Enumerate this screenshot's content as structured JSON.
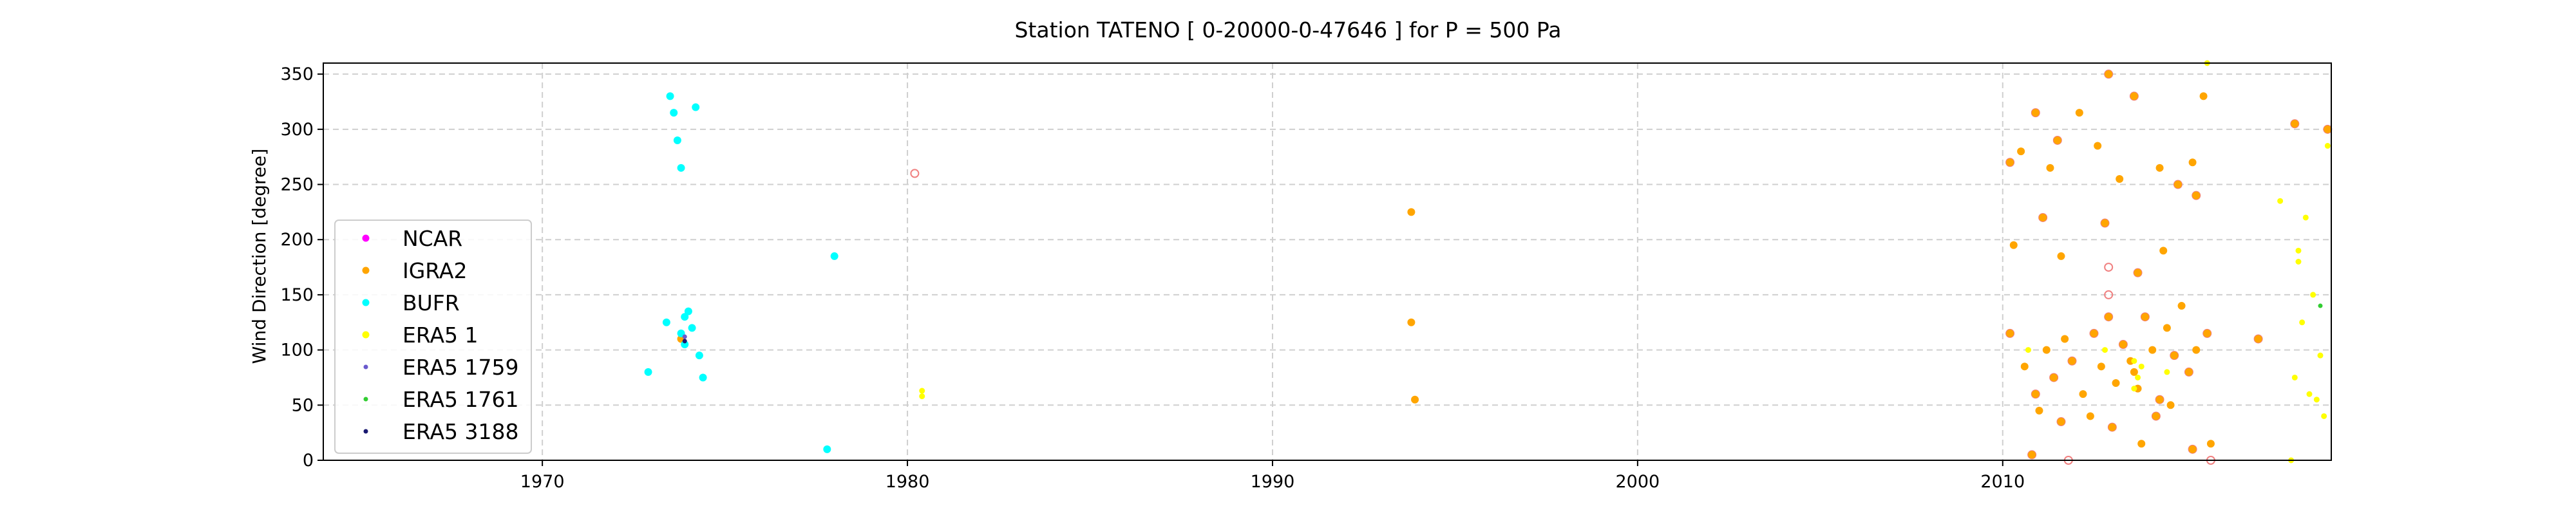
{
  "chart_data": {
    "type": "scatter",
    "title": "Station  TATENO [ 0-20000-0-47646 ]  for P = 500 Pa",
    "xlabel": "",
    "ylabel": "Wind Direction [degree]",
    "xlim": [
      1964.0,
      2019.0
    ],
    "ylim": [
      0,
      360
    ],
    "xticks": [
      1970,
      1980,
      1990,
      2000,
      2010
    ],
    "yticks": [
      0,
      50,
      100,
      150,
      200,
      250,
      300,
      350
    ],
    "grid": true,
    "legend_position": "center-left",
    "series": [
      {
        "name": "NCAR",
        "color": "#ff00ff",
        "points": []
      },
      {
        "name": "IGRA2",
        "color": "#ffa500",
        "points": [
          [
            1973.8,
            110
          ],
          [
            1993.8,
            225
          ],
          [
            1993.8,
            125
          ],
          [
            1993.9,
            55
          ],
          [
            2010.2,
            270
          ],
          [
            2010.5,
            280
          ],
          [
            2010.9,
            315
          ],
          [
            2011.3,
            265
          ],
          [
            2011.5,
            290
          ],
          [
            2012.1,
            315
          ],
          [
            2012.6,
            285
          ],
          [
            2012.9,
            350
          ],
          [
            2013.2,
            255
          ],
          [
            2013.6,
            330
          ],
          [
            2014.3,
            265
          ],
          [
            2014.8,
            250
          ],
          [
            2015.2,
            270
          ],
          [
            2015.5,
            330
          ],
          [
            2010.3,
            195
          ],
          [
            2011.1,
            220
          ],
          [
            2011.6,
            185
          ],
          [
            2012.8,
            215
          ],
          [
            2013.7,
            170
          ],
          [
            2014.4,
            190
          ],
          [
            2015.3,
            240
          ],
          [
            2010.2,
            115
          ],
          [
            2010.6,
            85
          ],
          [
            2010.9,
            60
          ],
          [
            2011.2,
            100
          ],
          [
            2011.4,
            75
          ],
          [
            2011.7,
            110
          ],
          [
            2011.9,
            90
          ],
          [
            2012.2,
            60
          ],
          [
            2012.5,
            115
          ],
          [
            2012.7,
            85
          ],
          [
            2012.9,
            130
          ],
          [
            2013.1,
            70
          ],
          [
            2013.3,
            105
          ],
          [
            2013.5,
            90
          ],
          [
            2013.6,
            80
          ],
          [
            2013.7,
            65
          ],
          [
            2013.9,
            130
          ],
          [
            2014.1,
            100
          ],
          [
            2014.3,
            55
          ],
          [
            2014.5,
            120
          ],
          [
            2014.7,
            95
          ],
          [
            2014.9,
            140
          ],
          [
            2015.1,
            80
          ],
          [
            2015.3,
            100
          ],
          [
            2015.6,
            115
          ],
          [
            2011.0,
            45
          ],
          [
            2011.6,
            35
          ],
          [
            2012.4,
            40
          ],
          [
            2013.0,
            30
          ],
          [
            2013.8,
            15
          ],
          [
            2014.2,
            40
          ],
          [
            2014.6,
            50
          ],
          [
            2015.2,
            10
          ],
          [
            2015.7,
            15
          ],
          [
            2010.8,
            5
          ],
          [
            2017.0,
            110
          ],
          [
            2018.0,
            305
          ],
          [
            2018.9,
            300
          ]
        ]
      },
      {
        "name": "BUFR",
        "color": "#00ffff",
        "points": [
          [
            1973.5,
            330
          ],
          [
            1973.6,
            315
          ],
          [
            1974.2,
            320
          ],
          [
            1973.7,
            290
          ],
          [
            1973.8,
            265
          ],
          [
            1978.0,
            185
          ],
          [
            1973.9,
            130
          ],
          [
            1974.0,
            135
          ],
          [
            1973.4,
            125
          ],
          [
            1974.1,
            120
          ],
          [
            1973.8,
            115
          ],
          [
            1973.9,
            105
          ],
          [
            1974.3,
            95
          ],
          [
            1972.9,
            80
          ],
          [
            1974.4,
            75
          ],
          [
            1977.8,
            10
          ]
        ]
      },
      {
        "name": "ERA5 1",
        "color": "#ffff00",
        "points": [
          [
            1980.4,
            63
          ],
          [
            1980.4,
            58
          ],
          [
            2013.6,
            90
          ],
          [
            2013.7,
            75
          ],
          [
            2013.8,
            85
          ],
          [
            2013.6,
            65
          ],
          [
            2012.8,
            100
          ],
          [
            2014.5,
            80
          ],
          [
            2010.7,
            100
          ],
          [
            2015.6,
            360
          ],
          [
            2017.6,
            235
          ],
          [
            2018.1,
            190
          ],
          [
            2018.3,
            220
          ],
          [
            2018.5,
            150
          ],
          [
            2018.7,
            95
          ],
          [
            2018.6,
            55
          ],
          [
            2018.8,
            40
          ],
          [
            2018.2,
            125
          ],
          [
            2018.0,
            75
          ],
          [
            2018.9,
            285
          ],
          [
            2018.4,
            60
          ],
          [
            2018.1,
            180
          ],
          [
            2017.9,
            0
          ]
        ]
      },
      {
        "name": "ERA5 1759",
        "color": "#6a5acd",
        "points": [
          [
            1973.9,
            112
          ]
        ]
      },
      {
        "name": "ERA5 1761",
        "color": "#32cd32",
        "points": [
          [
            2018.7,
            140
          ]
        ]
      },
      {
        "name": "ERA5 3188",
        "color": "#191970",
        "points": [
          [
            1973.9,
            108
          ]
        ]
      }
    ],
    "era5_outlined": [
      [
        2010.2,
        270
      ],
      [
        2010.9,
        315
      ],
      [
        2011.5,
        290
      ],
      [
        2012.9,
        350
      ],
      [
        2013.6,
        330
      ],
      [
        2014.8,
        250
      ],
      [
        2011.1,
        220
      ],
      [
        2012.8,
        215
      ],
      [
        2013.7,
        170
      ],
      [
        2015.3,
        240
      ],
      [
        2010.2,
        115
      ],
      [
        2010.9,
        60
      ],
      [
        2011.4,
        75
      ],
      [
        2011.9,
        90
      ],
      [
        2012.5,
        115
      ],
      [
        2012.9,
        130
      ],
      [
        2013.3,
        105
      ],
      [
        2013.9,
        130
      ],
      [
        2014.3,
        55
      ],
      [
        2014.7,
        95
      ],
      [
        2015.1,
        80
      ],
      [
        2015.6,
        115
      ],
      [
        2011.6,
        35
      ],
      [
        2013.0,
        30
      ],
      [
        2014.2,
        40
      ],
      [
        2015.2,
        10
      ],
      [
        2010.8,
        5
      ],
      [
        2017.0,
        110
      ],
      [
        2018.0,
        305
      ],
      [
        2018.9,
        300
      ],
      [
        1980.2,
        260
      ],
      [
        2012.9,
        175
      ],
      [
        2012.9,
        150
      ],
      [
        2011.8,
        0
      ],
      [
        2015.7,
        0
      ]
    ]
  }
}
